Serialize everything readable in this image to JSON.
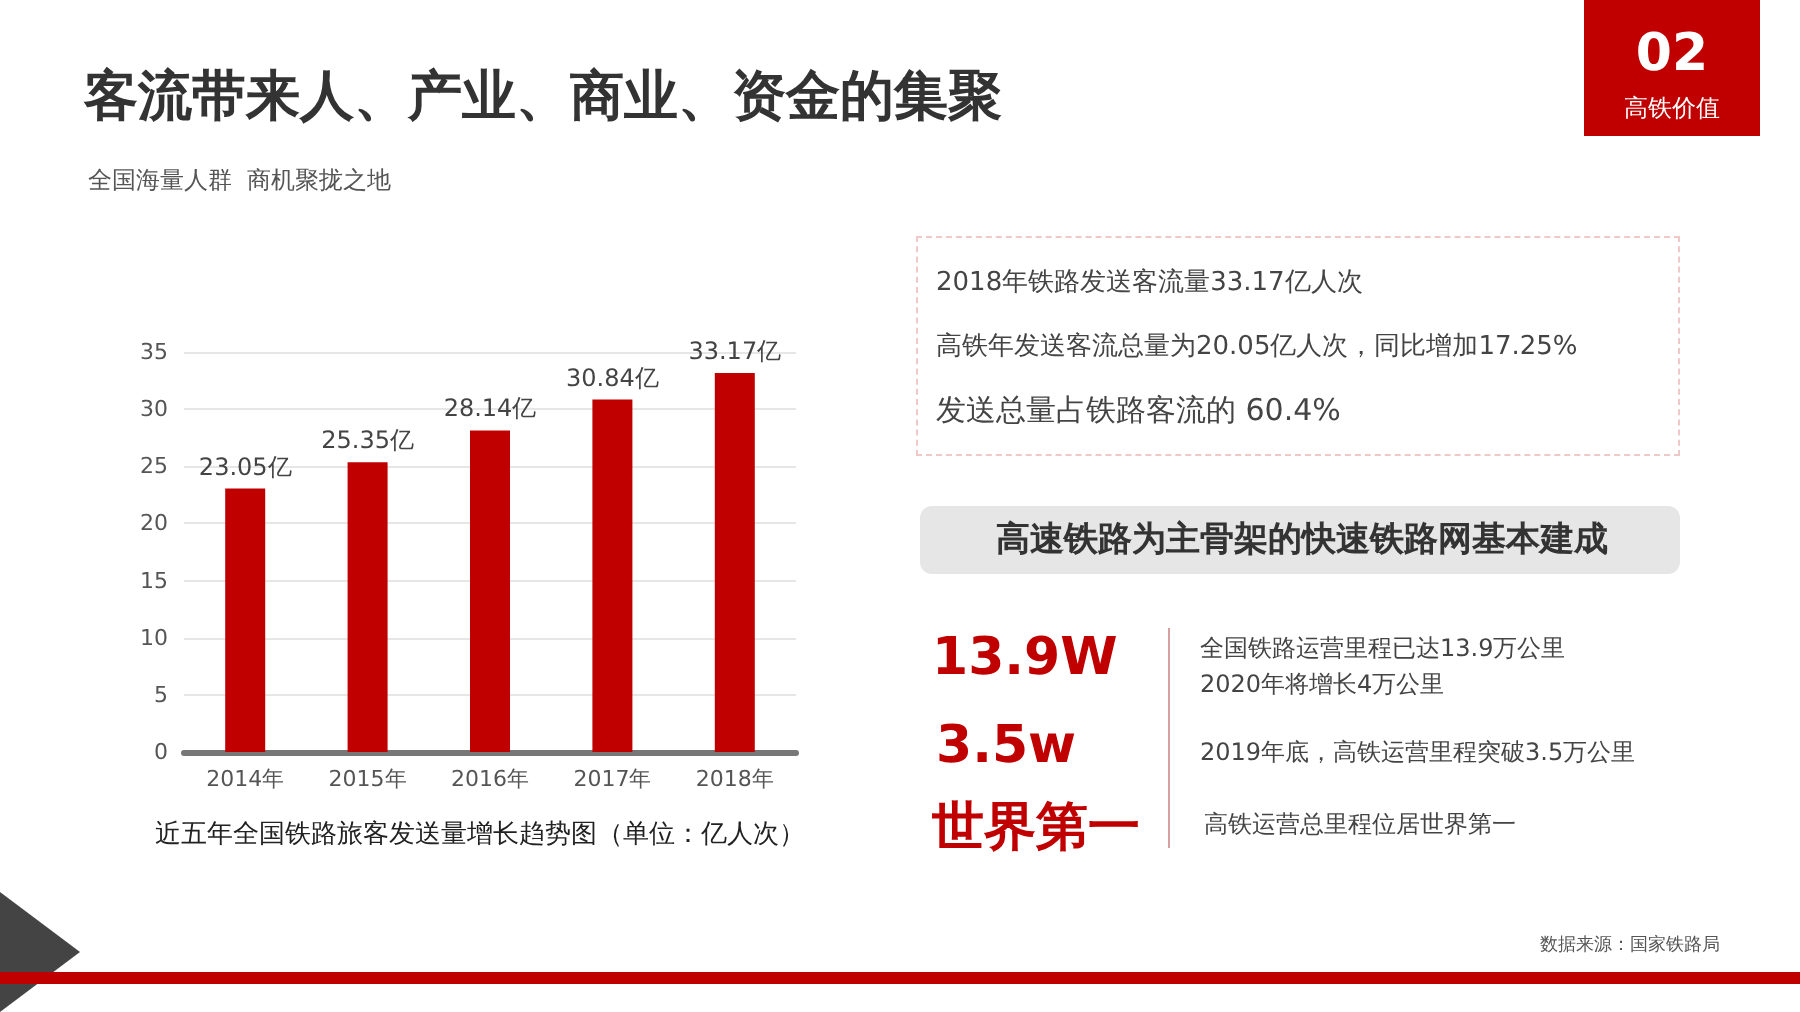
{
  "chart_data": {
    "type": "bar",
    "title": "客流带来人、产业、商业、资金的集聚",
    "subtitle": "全国海量人群  商机聚拢之地",
    "xlabel": "近五年全国铁路旅客发送量增长趋势图（单位：亿人次）",
    "categories": [
      "2014年",
      "2015年",
      "2016年",
      "2017年",
      "2018年"
    ],
    "values": [
      23.05,
      25.35,
      28.14,
      30.84,
      33.17
    ],
    "value_labels": [
      "23.05亿",
      "25.35亿",
      "28.14亿",
      "30.84亿",
      "33.17亿"
    ],
    "color": "#c00000",
    "ylim": [
      0,
      35
    ],
    "yticks": [
      0,
      5,
      10,
      15,
      20,
      25,
      30,
      35
    ],
    "grid": "y",
    "annotations": [
      "02",
      "高铁价值",
      "2018年铁路发送客流量33.17亿人次",
      "高铁年发送客流总量为20.05亿人次，同比增加17.25%",
      "发送总量占铁路客流的 60.4%",
      "高速铁路为主骨架的快速铁路网基本建成",
      "13.9W",
      "3.5w",
      "世界第一",
      "全国铁路运营里程已达13.9万公里",
      "2020年将增长4万公里",
      "2019年底，高铁运营里程突破3.5万公里",
      "高铁运营总里程位居世界第一",
      "数据来源：国家铁路局"
    ]
  }
}
